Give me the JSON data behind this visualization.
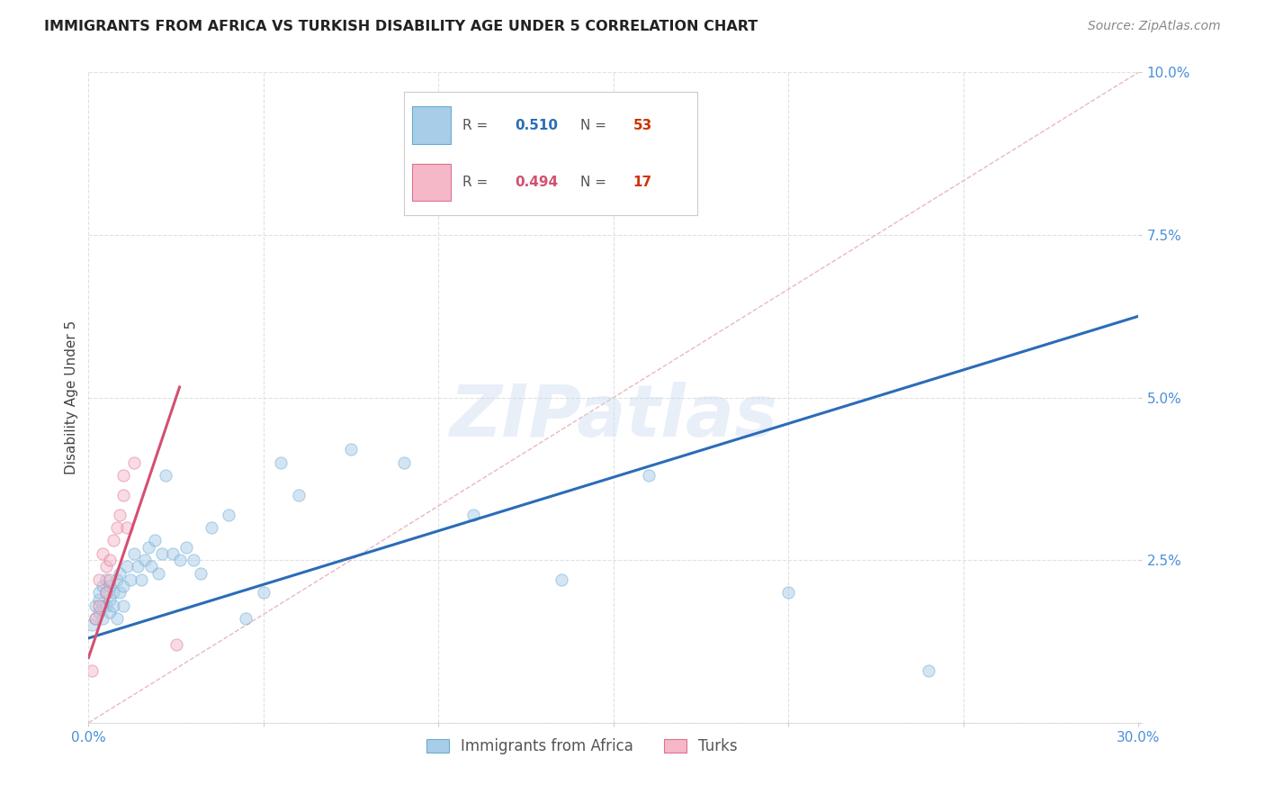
{
  "title": "IMMIGRANTS FROM AFRICA VS TURKISH DISABILITY AGE UNDER 5 CORRELATION CHART",
  "source": "Source: ZipAtlas.com",
  "ylabel": "Disability Age Under 5",
  "xlim": [
    0.0,
    0.3
  ],
  "ylim": [
    0.0,
    0.1
  ],
  "xticks": [
    0.0,
    0.05,
    0.1,
    0.15,
    0.2,
    0.25,
    0.3
  ],
  "yticks": [
    0.0,
    0.025,
    0.05,
    0.075,
    0.1
  ],
  "watermark_text": "ZIPatlas",
  "africa_x": [
    0.001,
    0.002,
    0.002,
    0.003,
    0.003,
    0.003,
    0.004,
    0.004,
    0.004,
    0.005,
    0.005,
    0.005,
    0.006,
    0.006,
    0.006,
    0.007,
    0.007,
    0.008,
    0.008,
    0.009,
    0.009,
    0.01,
    0.01,
    0.011,
    0.012,
    0.013,
    0.014,
    0.015,
    0.016,
    0.017,
    0.018,
    0.019,
    0.02,
    0.021,
    0.022,
    0.024,
    0.026,
    0.028,
    0.03,
    0.032,
    0.035,
    0.04,
    0.045,
    0.05,
    0.055,
    0.06,
    0.075,
    0.09,
    0.11,
    0.135,
    0.16,
    0.2,
    0.24
  ],
  "africa_y": [
    0.015,
    0.018,
    0.016,
    0.019,
    0.02,
    0.017,
    0.018,
    0.021,
    0.016,
    0.02,
    0.018,
    0.022,
    0.019,
    0.017,
    0.021,
    0.02,
    0.018,
    0.022,
    0.016,
    0.02,
    0.023,
    0.021,
    0.018,
    0.024,
    0.022,
    0.026,
    0.024,
    0.022,
    0.025,
    0.027,
    0.024,
    0.028,
    0.023,
    0.026,
    0.038,
    0.026,
    0.025,
    0.027,
    0.025,
    0.023,
    0.03,
    0.032,
    0.016,
    0.02,
    0.04,
    0.035,
    0.042,
    0.04,
    0.032,
    0.022,
    0.038,
    0.02,
    0.008
  ],
  "turks_x": [
    0.001,
    0.002,
    0.003,
    0.003,
    0.004,
    0.005,
    0.005,
    0.006,
    0.006,
    0.007,
    0.008,
    0.009,
    0.01,
    0.01,
    0.011,
    0.013,
    0.025
  ],
  "turks_y": [
    0.008,
    0.016,
    0.022,
    0.018,
    0.026,
    0.024,
    0.02,
    0.025,
    0.022,
    0.028,
    0.03,
    0.032,
    0.038,
    0.035,
    0.03,
    0.04,
    0.012
  ],
  "scatter_size": 90,
  "scatter_alpha": 0.5,
  "africa_color": "#a8cde8",
  "turks_color": "#f5b8c8",
  "africa_edge": "#6aaad4",
  "turks_edge": "#e07090",
  "regression_africa_color": "#2b6cb8",
  "regression_turks_color": "#d45070",
  "diagonal_color": "#e8b0b8",
  "diagonal_style": "--",
  "background_color": "#ffffff",
  "grid_color": "#e0e0e0",
  "title_color": "#222222",
  "ylabel_color": "#444444",
  "tick_color": "#4a90d9",
  "source_color": "#888888",
  "legend_box_color": "#cccccc",
  "legend_R_color_africa": "#2b6cb8",
  "legend_N_color_africa": "#cc3300",
  "legend_R_color_turks": "#d45070",
  "legend_N_color_turks": "#cc3300",
  "africa_reg_intercept": 0.013,
  "africa_reg_slope": 0.165,
  "turks_reg_intercept": 0.01,
  "turks_reg_slope": 1.6
}
